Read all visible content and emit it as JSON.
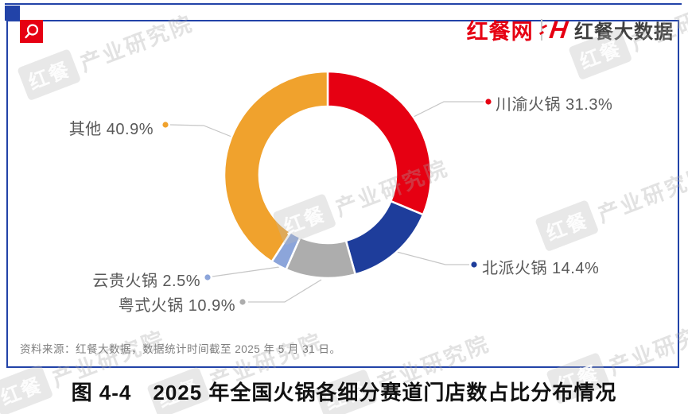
{
  "header": {
    "site_logo": "红餐网",
    "brand_mark": "H",
    "brand_name": "红餐大数据"
  },
  "watermark": {
    "badge": "红餐",
    "label": "产业研究院"
  },
  "chart_data": {
    "type": "pie",
    "subtype": "donut",
    "title": "2025 年全国火锅各细分赛道门店数占比分布情况",
    "unit": "%",
    "start_angle_deg": 0,
    "direction": "clockwise",
    "legend_position": "callout-labels",
    "segments": [
      {
        "label": "川渝火锅",
        "value": 31.3,
        "display": "川渝火锅 31.3%",
        "color": "#E60012"
      },
      {
        "label": "北派火锅",
        "value": 14.4,
        "display": "北派火锅 14.4%",
        "color": "#1E3D9B"
      },
      {
        "label": "粤式火锅",
        "value": 10.9,
        "display": "粤式火锅 10.9%",
        "color": "#ADADAD"
      },
      {
        "label": "云贵火锅",
        "value": 2.5,
        "display": "云贵火锅 2.5%",
        "color": "#8CA5DA"
      },
      {
        "label": "其他",
        "value": 40.9,
        "display": "其他 40.9%",
        "color": "#F0A22D"
      }
    ]
  },
  "source_note": "资料来源：红餐大数据，数据统计时间截至 2025 年 5 月 31 日。",
  "caption": "图 4-4　2025 年全国火锅各细分赛道门店数占比分布情况"
}
